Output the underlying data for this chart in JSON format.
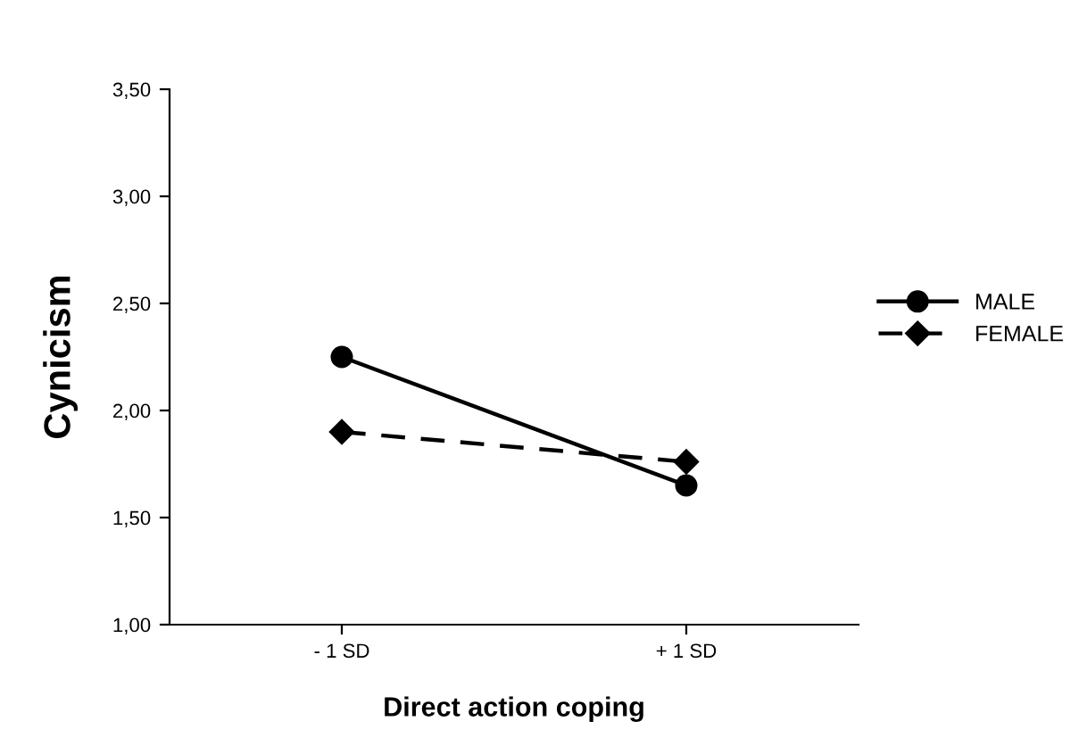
{
  "chart_data": {
    "type": "line",
    "xlabel": "Direct action coping",
    "ylabel": "Cynicism",
    "categories": [
      "- 1 SD",
      "+ 1 SD"
    ],
    "series": [
      {
        "name": "MALE",
        "color": "#000000",
        "values": [
          2.25,
          1.65
        ],
        "marker": "circle",
        "line_style": "solid"
      },
      {
        "name": "FEMALE",
        "color": "#000000",
        "values": [
          1.9,
          1.76
        ],
        "marker": "diamond",
        "line_style": "dashed"
      }
    ],
    "ylim": [
      1.0,
      3.5
    ],
    "yticks": [
      {
        "value": 1.0,
        "label": "1,00"
      },
      {
        "value": 1.5,
        "label": "1,50"
      },
      {
        "value": 2.0,
        "label": "2,00"
      },
      {
        "value": 2.5,
        "label": "2,50"
      },
      {
        "value": 3.0,
        "label": "3,00"
      },
      {
        "value": 3.5,
        "label": "3,50"
      }
    ],
    "grid": false,
    "legend": "right"
  }
}
